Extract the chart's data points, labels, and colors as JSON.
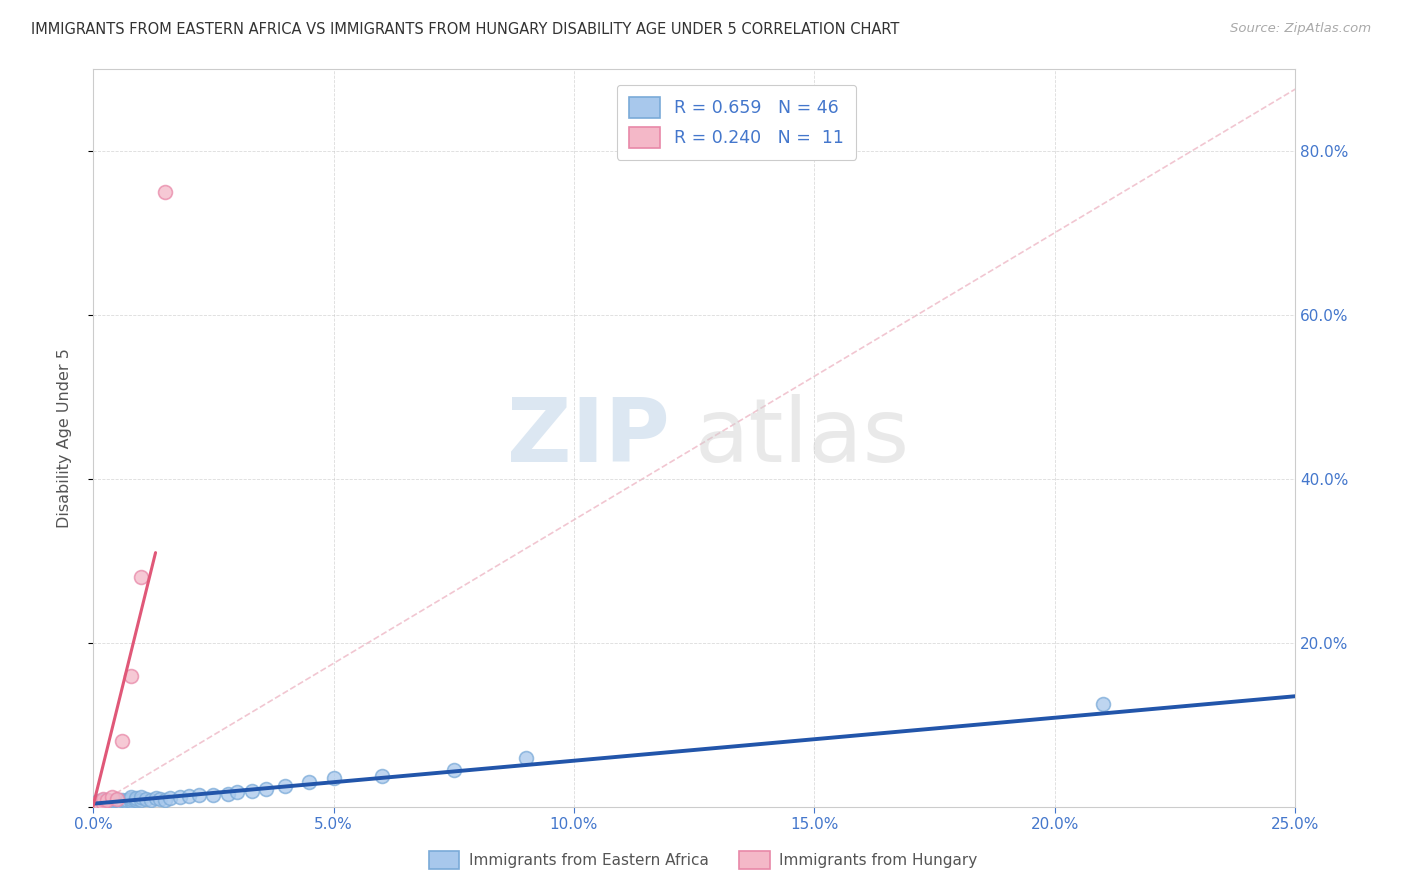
{
  "title": "IMMIGRANTS FROM EASTERN AFRICA VS IMMIGRANTS FROM HUNGARY DISABILITY AGE UNDER 5 CORRELATION CHART",
  "source": "Source: ZipAtlas.com",
  "ylabel": "Disability Age Under 5",
  "xlim": [
    0.0,
    0.25
  ],
  "ylim": [
    0.0,
    0.9
  ],
  "watermark_zip": "ZIP",
  "watermark_atlas": "atlas",
  "legend_r1": "R = 0.659   N = 46",
  "legend_r2": "R = 0.240   N =  11",
  "blue_color": "#A8C8EC",
  "pink_color": "#F4B8C8",
  "blue_edge_color": "#7AAAD8",
  "pink_edge_color": "#E888A8",
  "blue_line_color": "#2255AA",
  "pink_line_color": "#E05878",
  "diag_line_color": "#F0C0CC",
  "axis_label_color": "#4477CC",
  "background_color": "#FFFFFF",
  "blue_scatter_x": [
    0.001,
    0.001,
    0.001,
    0.002,
    0.002,
    0.002,
    0.003,
    0.003,
    0.003,
    0.004,
    0.004,
    0.005,
    0.005,
    0.005,
    0.006,
    0.006,
    0.007,
    0.007,
    0.008,
    0.008,
    0.008,
    0.009,
    0.009,
    0.01,
    0.01,
    0.011,
    0.012,
    0.013,
    0.014,
    0.015,
    0.016,
    0.018,
    0.02,
    0.022,
    0.025,
    0.028,
    0.03,
    0.033,
    0.036,
    0.04,
    0.045,
    0.05,
    0.06,
    0.075,
    0.09,
    0.21
  ],
  "blue_scatter_y": [
    0.003,
    0.005,
    0.007,
    0.003,
    0.005,
    0.008,
    0.004,
    0.006,
    0.008,
    0.004,
    0.007,
    0.005,
    0.007,
    0.009,
    0.005,
    0.008,
    0.006,
    0.009,
    0.007,
    0.01,
    0.012,
    0.008,
    0.011,
    0.009,
    0.012,
    0.01,
    0.009,
    0.011,
    0.01,
    0.009,
    0.011,
    0.012,
    0.013,
    0.015,
    0.014,
    0.016,
    0.018,
    0.02,
    0.022,
    0.025,
    0.03,
    0.035,
    0.038,
    0.045,
    0.06,
    0.125
  ],
  "pink_scatter_x": [
    0.001,
    0.001,
    0.002,
    0.002,
    0.003,
    0.004,
    0.005,
    0.006,
    0.008,
    0.01,
    0.015
  ],
  "pink_scatter_y": [
    0.003,
    0.006,
    0.005,
    0.01,
    0.008,
    0.012,
    0.01,
    0.08,
    0.16,
    0.28,
    0.75
  ],
  "blue_trend_x": [
    0.0,
    0.25
  ],
  "blue_trend_y": [
    0.004,
    0.135
  ],
  "pink_trend_x": [
    0.0,
    0.013
  ],
  "pink_trend_y": [
    0.001,
    0.31
  ],
  "diag_line_x": [
    0.0,
    0.25
  ],
  "diag_line_y": [
    0.0,
    0.875
  ]
}
